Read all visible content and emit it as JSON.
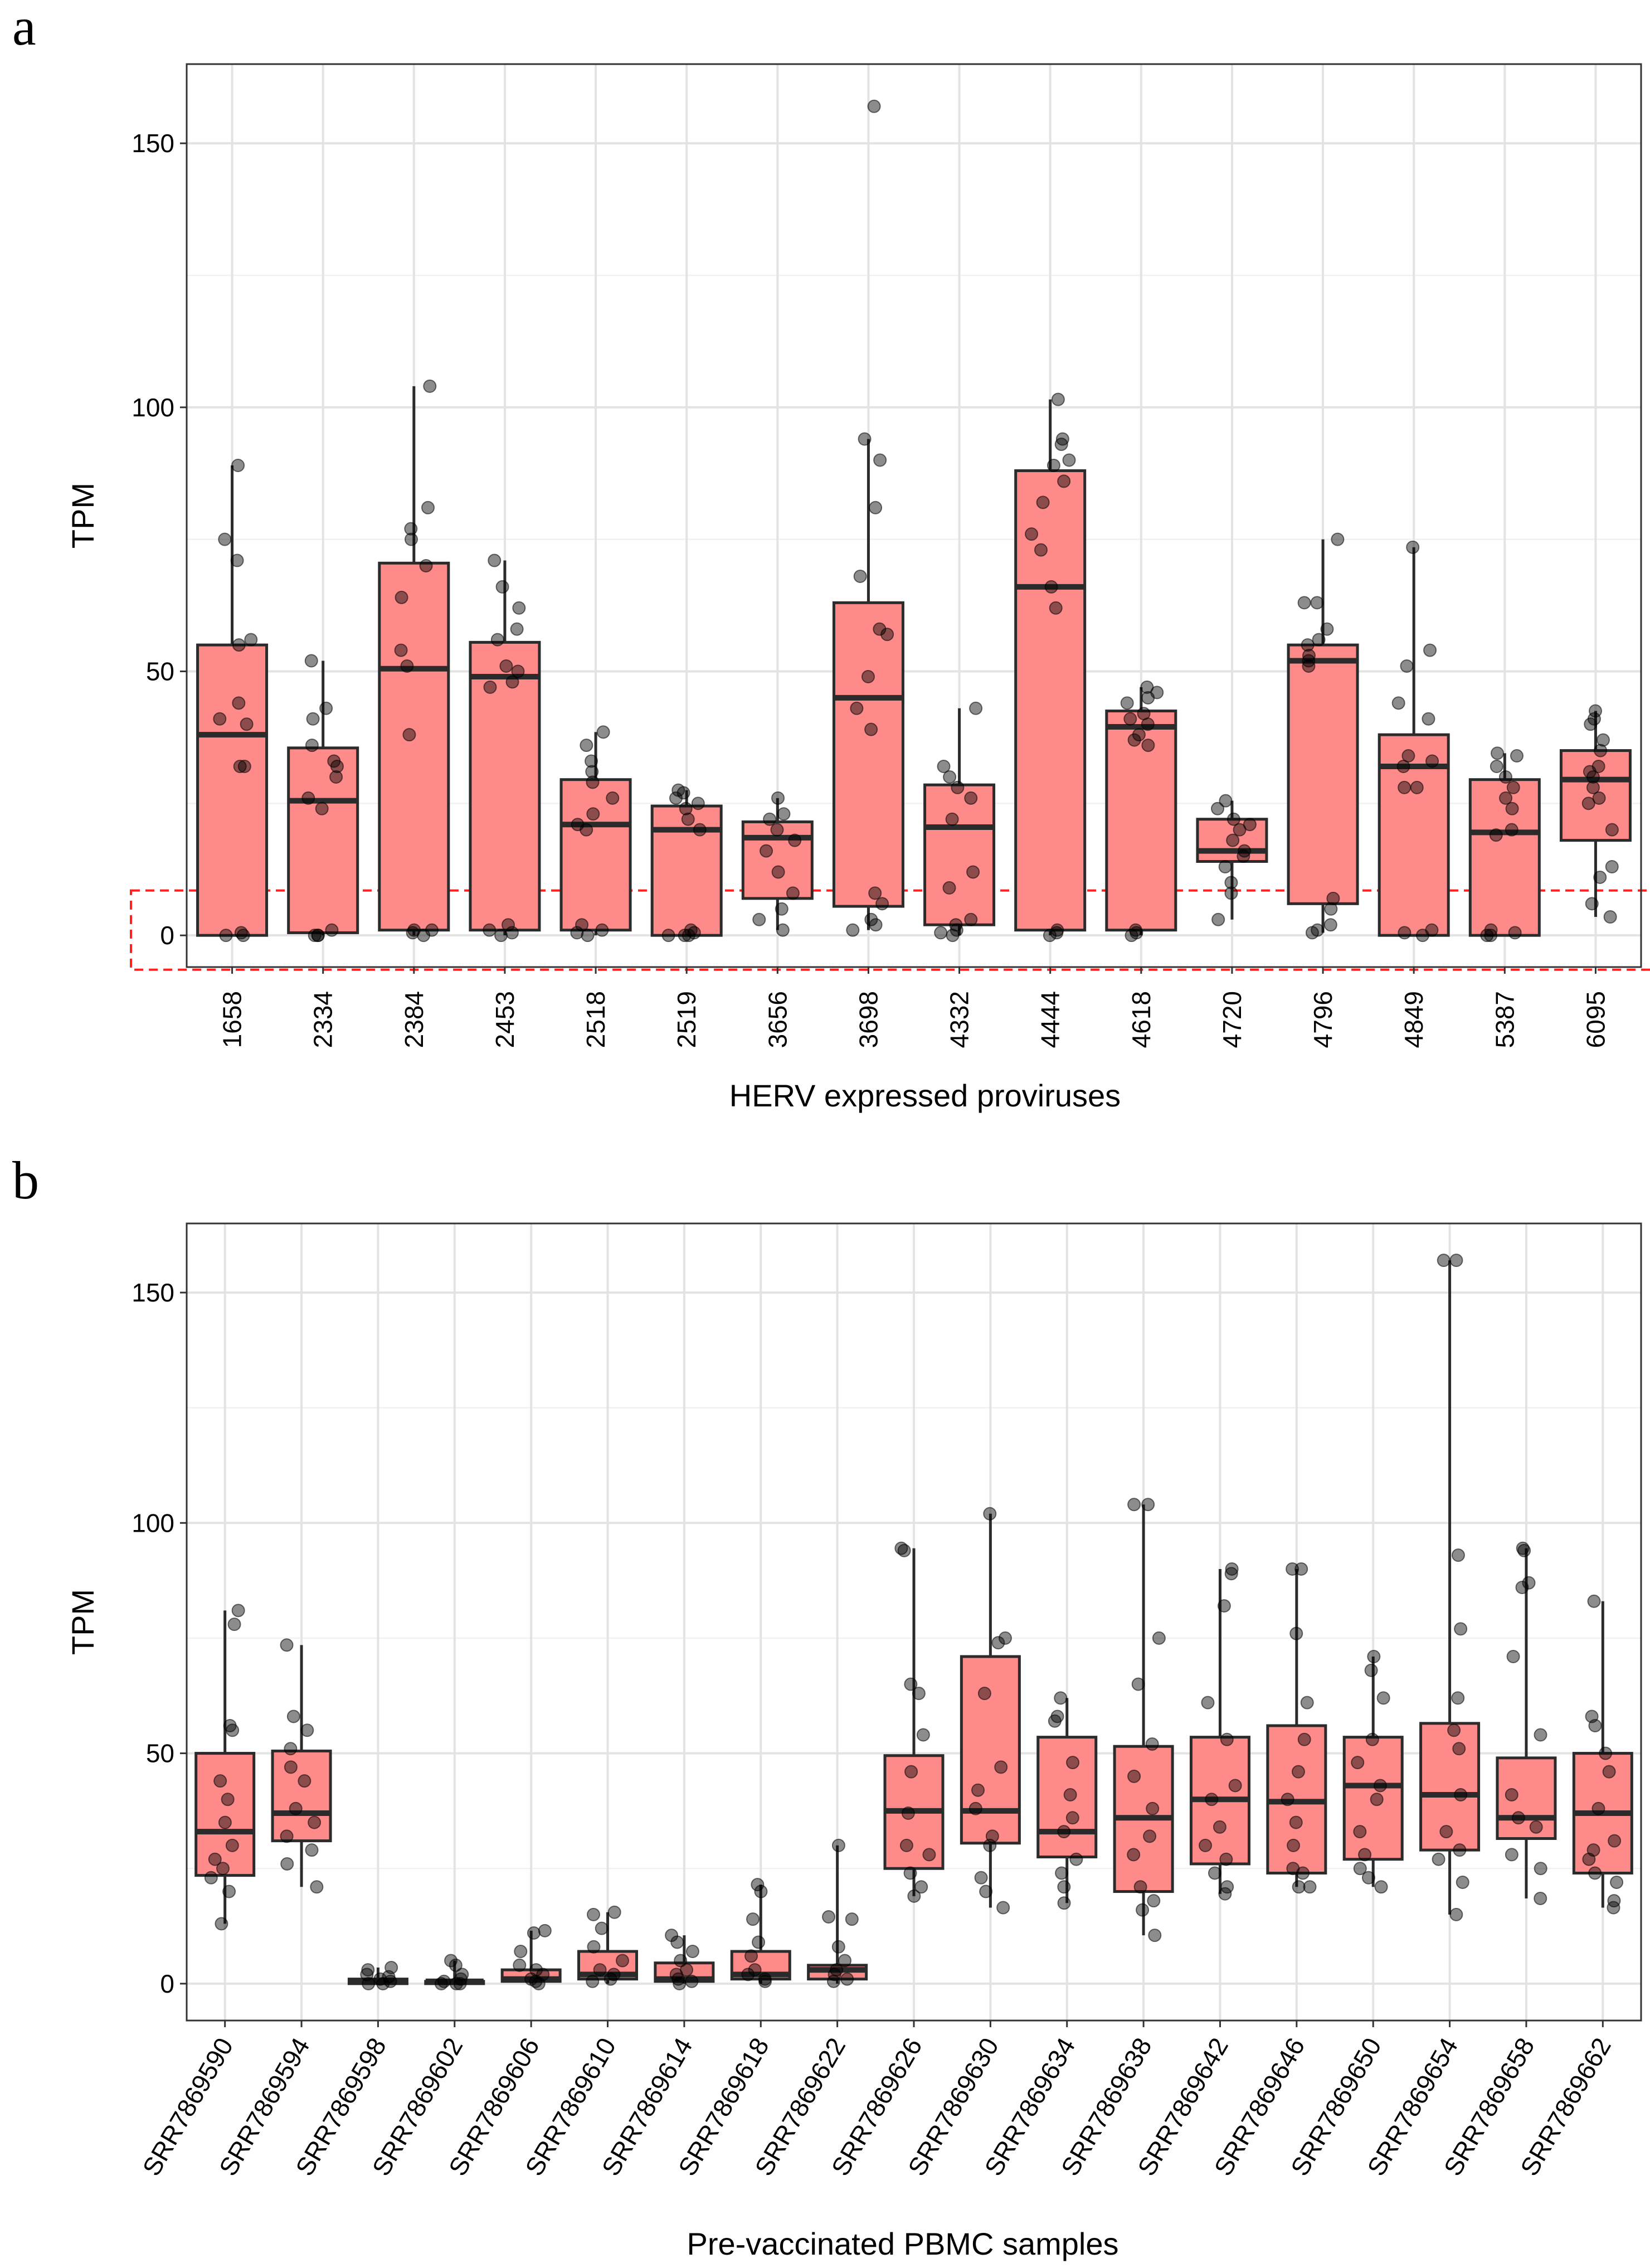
{
  "chart_data": [
    {
      "panel": "a",
      "type": "box",
      "xlabel": "HERV expressed proviruses",
      "ylabel": "TPM",
      "ylim": [
        -6,
        165
      ],
      "yticks": [
        0,
        50,
        100,
        150
      ],
      "grid": true,
      "box_fill": "#ff8a8a",
      "highlight_range": [
        -6.5,
        8.5
      ],
      "highlight_color": "#ff2020",
      "categories": [
        "1658",
        "2334",
        "2384",
        "2453",
        "2518",
        "2519",
        "3656",
        "3698",
        "4332",
        "4444",
        "4618",
        "4720",
        "4796",
        "4849",
        "5387",
        "6095"
      ],
      "boxes": [
        {
          "min": 0,
          "q1": 0,
          "median": 38,
          "q3": 55,
          "max": 89
        },
        {
          "min": 0,
          "q1": 0.5,
          "median": 25.5,
          "q3": 35.5,
          "max": 52
        },
        {
          "min": 0,
          "q1": 1,
          "median": 50.5,
          "q3": 70.5,
          "max": 104
        },
        {
          "min": 0,
          "q1": 1,
          "median": 49,
          "q3": 55.5,
          "max": 71
        },
        {
          "min": 0,
          "q1": 1,
          "median": 21,
          "q3": 29.5,
          "max": 38.5
        },
        {
          "min": 0,
          "q1": 0,
          "median": 20,
          "q3": 24.5,
          "max": 27.5
        },
        {
          "min": 1,
          "q1": 7,
          "median": 18.5,
          "q3": 21.5,
          "max": 26
        },
        {
          "min": 1,
          "q1": 5.5,
          "median": 45,
          "q3": 63,
          "max": 94
        },
        {
          "min": 0,
          "q1": 2,
          "median": 20.5,
          "q3": 28.5,
          "max": 43
        },
        {
          "min": 0,
          "q1": 1,
          "median": 66,
          "q3": 88,
          "max": 101.5
        },
        {
          "min": 0,
          "q1": 1,
          "median": 39.5,
          "q3": 42.5,
          "max": 47
        },
        {
          "min": 3,
          "q1": 14,
          "median": 16,
          "q3": 22,
          "max": 25.5
        },
        {
          "min": 0.5,
          "q1": 6,
          "median": 52,
          "q3": 55,
          "max": 75
        },
        {
          "min": 0,
          "q1": 0,
          "median": 32,
          "q3": 38,
          "max": 73.5
        },
        {
          "min": 0,
          "q1": 0,
          "median": 19.5,
          "q3": 29.5,
          "max": 34.5
        },
        {
          "min": 3.5,
          "q1": 18,
          "median": 29.5,
          "q3": 35,
          "max": 42.5
        }
      ],
      "points": [
        [
          89,
          75,
          71,
          56,
          55,
          44,
          41,
          40,
          32,
          32,
          0.5,
          0,
          0
        ],
        [
          52,
          43,
          41,
          36,
          33,
          32,
          30,
          26,
          24,
          1,
          0,
          0,
          0
        ],
        [
          104,
          81,
          77,
          75,
          70,
          64,
          54,
          51,
          38,
          1,
          1,
          0.5,
          0
        ],
        [
          71,
          66,
          62,
          58,
          56,
          51,
          50,
          48,
          47,
          2,
          1,
          0.5,
          0
        ],
        [
          38.5,
          36,
          33,
          31,
          29,
          26,
          23,
          21,
          20,
          2,
          1,
          0.5,
          0
        ],
        [
          27.5,
          27,
          26,
          25,
          24,
          22,
          20,
          1,
          0.5,
          0,
          0,
          0
        ],
        [
          26,
          23,
          22,
          20,
          18,
          16,
          12,
          8,
          5,
          3,
          1
        ],
        [
          157,
          94,
          90,
          81,
          68,
          58,
          57,
          49,
          43,
          39,
          8,
          6,
          3,
          2,
          1
        ],
        [
          43,
          32,
          30,
          28,
          26,
          22,
          12,
          9,
          3,
          2,
          1,
          0.5,
          0
        ],
        [
          101.5,
          94,
          93,
          90,
          89,
          86,
          82,
          76,
          73,
          66,
          62,
          1,
          0.5,
          0
        ],
        [
          47,
          46,
          45,
          44,
          42,
          41,
          40,
          38,
          37,
          36,
          1,
          0.5,
          0
        ],
        [
          25.5,
          24,
          22,
          21,
          20,
          18,
          16,
          15,
          13,
          10,
          8,
          3
        ],
        [
          75,
          63,
          63,
          58,
          56,
          55,
          53,
          52,
          51,
          7,
          5,
          2,
          1,
          0.5
        ],
        [
          73.5,
          54,
          51,
          44,
          41,
          34,
          33,
          32,
          28,
          28,
          1,
          0.5,
          0
        ],
        [
          34.5,
          34,
          32,
          30,
          28,
          26,
          24,
          20,
          19,
          1,
          0.5,
          0,
          0
        ],
        [
          42.5,
          41,
          40,
          37,
          35,
          32,
          31,
          30,
          28,
          26,
          25,
          20,
          13,
          11,
          6,
          3.5
        ]
      ]
    },
    {
      "panel": "b",
      "type": "box",
      "xlabel": "Pre-vaccinated PBMC samples",
      "ylabel": "TPM",
      "ylim": [
        -8,
        165
      ],
      "yticks": [
        0,
        50,
        100,
        150
      ],
      "grid": true,
      "box_fill": "#ff8a8a",
      "categories": [
        "SRR7869590",
        "SRR7869594",
        "SRR7869598",
        "SRR7869602",
        "SRR7869606",
        "SRR7869610",
        "SRR7869614",
        "SRR7869618",
        "SRR7869622",
        "SRR7869626",
        "SRR7869630",
        "SRR7869634",
        "SRR7869638",
        "SRR7869642",
        "SRR7869646",
        "SRR7869650",
        "SRR7869654",
        "SRR7869658",
        "SRR7869662"
      ],
      "boxes": [
        {
          "min": 13,
          "q1": 23.5,
          "median": 33,
          "q3": 50,
          "max": 81
        },
        {
          "min": 21,
          "q1": 31,
          "median": 37,
          "q3": 50.5,
          "max": 73.5
        },
        {
          "min": 0,
          "q1": 0,
          "median": 0.5,
          "q3": 1,
          "max": 3.5
        },
        {
          "min": 0,
          "q1": 0,
          "median": 0.5,
          "q3": 0.5,
          "max": 5
        },
        {
          "min": 0,
          "q1": 0.5,
          "median": 1,
          "q3": 3,
          "max": 11.5
        },
        {
          "min": 0,
          "q1": 1,
          "median": 2,
          "q3": 7,
          "max": 15.5
        },
        {
          "min": 0,
          "q1": 0.5,
          "median": 1,
          "q3": 4.5,
          "max": 10.5
        },
        {
          "min": 0,
          "q1": 1,
          "median": 2,
          "q3": 7,
          "max": 21.5
        },
        {
          "min": 0,
          "q1": 1,
          "median": 3,
          "q3": 4,
          "max": 30
        },
        {
          "min": 19,
          "q1": 25,
          "median": 37.5,
          "q3": 49.5,
          "max": 94.5
        },
        {
          "min": 16.5,
          "q1": 30.5,
          "median": 37.5,
          "q3": 71,
          "max": 102
        },
        {
          "min": 17.5,
          "q1": 27.5,
          "median": 33,
          "q3": 53.5,
          "max": 62
        },
        {
          "min": 10.5,
          "q1": 20,
          "median": 36,
          "q3": 51.5,
          "max": 104
        },
        {
          "min": 19.5,
          "q1": 26,
          "median": 40,
          "q3": 53.5,
          "max": 90
        },
        {
          "min": 21,
          "q1": 24,
          "median": 39.5,
          "q3": 56,
          "max": 90
        },
        {
          "min": 21,
          "q1": 27,
          "median": 43,
          "q3": 53.5,
          "max": 71
        },
        {
          "min": 15,
          "q1": 29,
          "median": 41,
          "q3": 56.5,
          "max": 157
        },
        {
          "min": 18.5,
          "q1": 31.5,
          "median": 36,
          "q3": 49,
          "max": 94.5
        },
        {
          "min": 16.5,
          "q1": 24,
          "median": 37,
          "q3": 50,
          "max": 83
        }
      ],
      "points": [
        [
          81,
          78,
          56,
          55,
          44,
          40,
          35,
          30,
          27,
          25,
          23,
          20,
          13
        ],
        [
          73.5,
          58,
          55,
          51,
          47,
          44,
          38,
          35,
          32,
          29,
          26,
          21
        ],
        [
          3.5,
          3,
          2,
          1.5,
          1,
          0.5,
          0,
          0
        ],
        [
          5,
          4,
          2,
          1,
          0.5,
          0,
          0,
          0
        ],
        [
          11.5,
          11,
          7,
          4,
          3,
          2,
          1,
          0.5,
          0
        ],
        [
          15.5,
          15,
          12,
          8,
          5,
          3,
          2,
          1,
          0.5
        ],
        [
          10.5,
          9,
          7,
          5,
          3,
          2,
          1,
          0.5,
          0
        ],
        [
          21.5,
          20,
          14,
          9,
          6,
          3,
          2,
          1,
          0.5
        ],
        [
          30,
          14.5,
          14,
          8,
          5,
          3,
          2,
          1,
          0.5
        ],
        [
          94.5,
          94,
          65,
          63,
          54,
          46,
          37,
          30,
          28,
          24,
          21,
          19
        ],
        [
          102,
          75,
          74,
          63,
          47,
          42,
          38,
          32,
          30,
          23,
          20,
          16.5
        ],
        [
          62,
          58,
          57,
          48,
          41,
          36,
          33,
          27,
          24,
          21,
          17.5
        ],
        [
          104,
          104,
          75,
          65,
          52,
          45,
          38,
          32,
          28,
          21,
          18,
          16,
          10.5
        ],
        [
          90,
          89,
          82,
          61,
          53,
          43,
          40,
          34,
          30,
          27,
          24,
          21,
          19.5
        ],
        [
          90,
          90,
          76,
          61,
          53,
          46,
          40,
          35,
          30,
          25,
          24,
          21,
          21
        ],
        [
          71,
          68,
          62,
          53,
          48,
          43,
          40,
          33,
          28,
          25,
          23,
          21
        ],
        [
          157,
          157,
          93,
          77,
          62,
          55,
          51,
          41,
          33,
          29,
          27,
          22,
          15
        ],
        [
          94.5,
          94,
          87,
          86,
          71,
          54,
          41,
          36,
          34,
          28,
          25,
          18.5
        ],
        [
          83,
          58,
          56,
          50,
          46,
          38,
          31,
          29,
          27,
          24,
          22,
          18,
          16.5
        ]
      ]
    }
  ]
}
